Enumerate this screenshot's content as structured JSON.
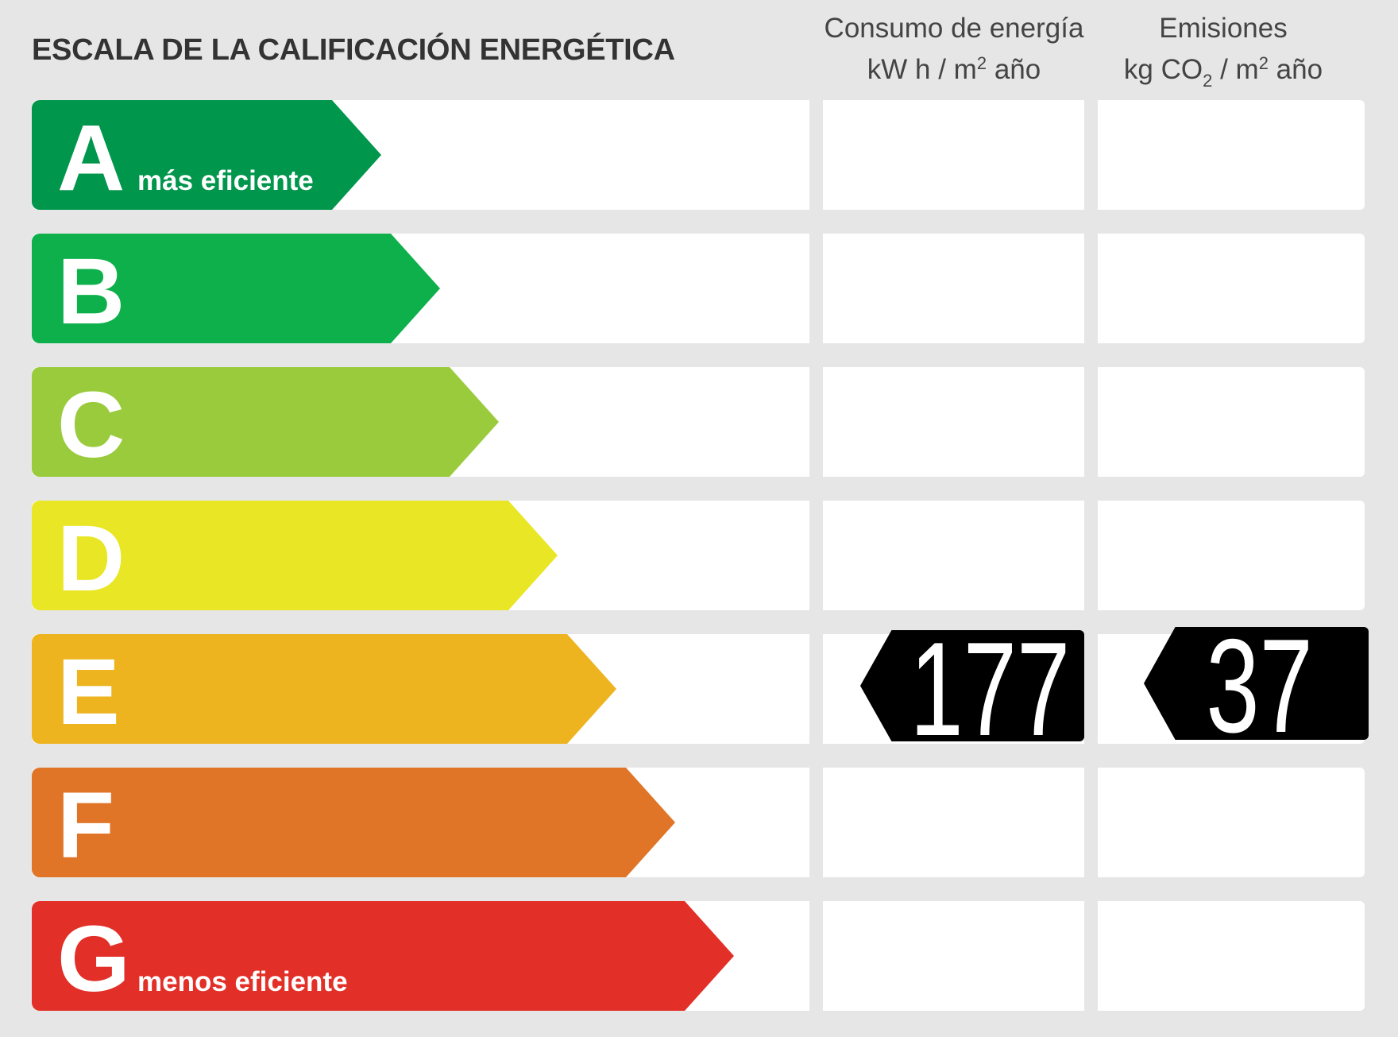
{
  "title": "ESCALA DE LA CALIFICACIÓN ENERGÉTICA",
  "columns": {
    "energy": {
      "line1": "Consumo de energía",
      "unit_a": "kW h  / m",
      "sup": "2",
      "unit_b": " año"
    },
    "emissions": {
      "line1": "Emisiones",
      "unit_a": "kg CO",
      "sub": "2",
      "unit_c": "  / m",
      "sup": "2",
      "unit_b": " año"
    }
  },
  "ratings": [
    {
      "letter": "A",
      "label": "más eficiente",
      "color": "#00964c"
    },
    {
      "letter": "B",
      "label": "",
      "color": "#0db04b"
    },
    {
      "letter": "C",
      "label": "",
      "color": "#9acb3c"
    },
    {
      "letter": "D",
      "label": "",
      "color": "#e9e626"
    },
    {
      "letter": "E",
      "label": "",
      "color": "#edb41f"
    },
    {
      "letter": "F",
      "label": "",
      "color": "#e07528"
    },
    {
      "letter": "G",
      "label": "menos eficiente",
      "color": "#e22f28"
    }
  ],
  "result": {
    "rating": "E",
    "energy_value": "177",
    "emissions_value": "37"
  }
}
